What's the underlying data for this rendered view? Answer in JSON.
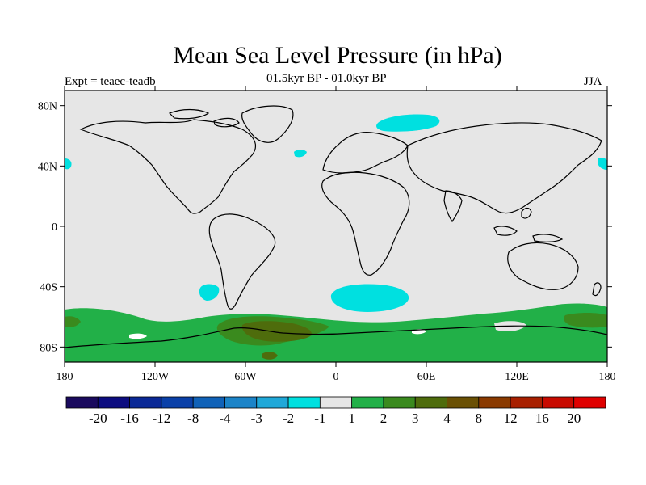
{
  "title": "Mean Sea Level Pressure (in hPa)",
  "left_label": "Expt = teaec-teadb",
  "center_label": "01.5kyr BP - 01.0kyr BP",
  "right_label": "JJA",
  "map": {
    "projection": "cylindrical-equidistant",
    "lon_range": [
      -180,
      180
    ],
    "lat_range": [
      -90,
      90
    ],
    "background_color": "#e6e6e6",
    "coastline_color": "#000000",
    "lat_ticks": [
      {
        "value": 80,
        "label": "80N"
      },
      {
        "value": 40,
        "label": "40N"
      },
      {
        "value": 0,
        "label": "0"
      },
      {
        "value": -40,
        "label": "40S"
      },
      {
        "value": -80,
        "label": "80S"
      }
    ],
    "lon_ticks": [
      {
        "value": -180,
        "label": "180"
      },
      {
        "value": -120,
        "label": "120W"
      },
      {
        "value": -60,
        "label": "60W"
      },
      {
        "value": 0,
        "label": "0"
      },
      {
        "value": 60,
        "label": "60E"
      },
      {
        "value": 120,
        "label": "120E"
      },
      {
        "value": 180,
        "label": "180"
      }
    ]
  },
  "colorbar": {
    "colors": [
      "#1a0a5e",
      "#0c0c80",
      "#0a2896",
      "#0a40a8",
      "#1062b8",
      "#1c84c8",
      "#20a8d8",
      "#00e0e0",
      "#e6e6e6",
      "#22b048",
      "#3a8a1e",
      "#4e6c0c",
      "#6a5004",
      "#8a3a00",
      "#a82000",
      "#c80a00",
      "#e00000"
    ],
    "labels": [
      "-20",
      "-16",
      "-12",
      "-8",
      "-4",
      "-3",
      "-2",
      "-1",
      "1",
      "2",
      "3",
      "4",
      "8",
      "12",
      "16",
      "20"
    ]
  }
}
